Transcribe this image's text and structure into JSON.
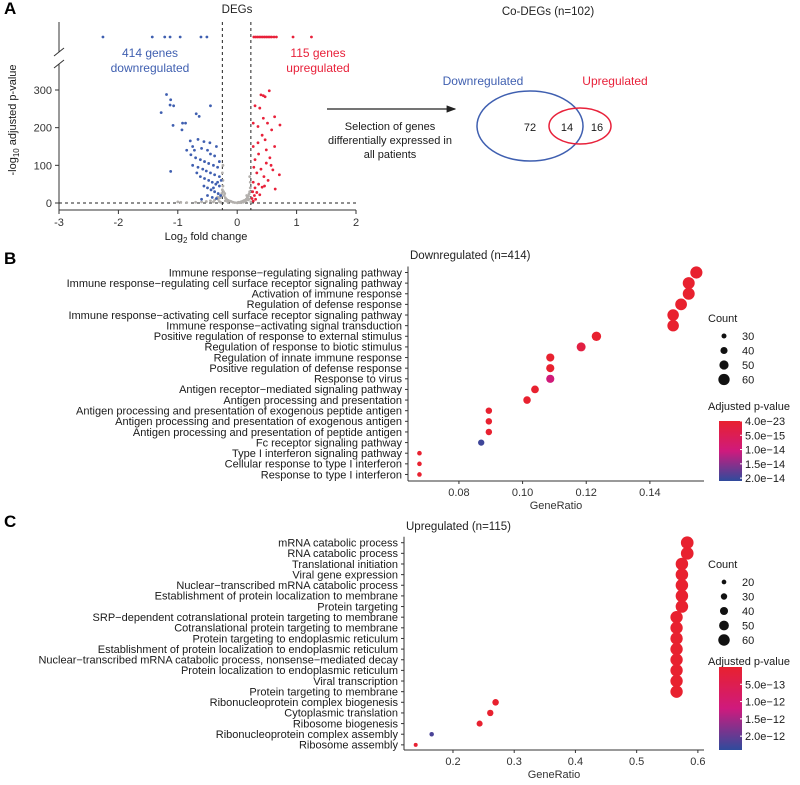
{
  "panels": {
    "a": "A",
    "b": "B",
    "c": "C"
  },
  "colors": {
    "down": "#3f5fb0",
    "up": "#e8213a",
    "ns": "#b3b0ad",
    "grad_high": "#e8212f",
    "grad_mid": "#cf1a7d",
    "grad_low": "#2f4b9c"
  },
  "chart_data": [
    {
      "type": "scatter",
      "title": "DEGs",
      "xlabel": {
        "main": "Log",
        "sub": "2",
        "rest": " fold change"
      },
      "ylabel": {
        "main": "-log",
        "sub": "10",
        "rest": " adjusted p-value"
      },
      "xlim": [
        -3,
        2
      ],
      "ylim": [
        0,
        300
      ],
      "xticks": [
        "-3",
        "-2",
        "-1",
        "0",
        "1",
        "2"
      ],
      "yticks": [
        "0",
        "100",
        "200",
        "300"
      ],
      "thresholds": {
        "fc_low": -0.25,
        "fc_high": 0.23,
        "p": 0
      },
      "annotations": {
        "down_line1": "414 genes",
        "down_line2": "downregulated",
        "up_line1": "115 genes",
        "up_line2": "upregulated"
      },
      "capped_down_x": [
        -2.26,
        -1.43,
        -1.22,
        -1.13,
        -0.96,
        -0.61,
        -0.51
      ],
      "capped_up_x": [
        0.28,
        0.31,
        0.34,
        0.37,
        0.4,
        0.43,
        0.46,
        0.49,
        0.52,
        0.55,
        0.58,
        0.62,
        0.66,
        0.94,
        1.25
      ],
      "down": [
        [
          -1.19,
          288
        ],
        [
          -1.12,
          274
        ],
        [
          -1.13,
          260
        ],
        [
          -1.07,
          258
        ],
        [
          -1.28,
          240
        ],
        [
          -1.08,
          206
        ],
        [
          -0.92,
          212
        ],
        [
          -0.87,
          212
        ],
        [
          -0.93,
          194
        ],
        [
          -0.69,
          237
        ],
        [
          -0.64,
          230
        ],
        [
          -0.45,
          258
        ],
        [
          -1.12,
          84
        ],
        [
          -0.79,
          165
        ],
        [
          -0.66,
          169
        ],
        [
          -0.56,
          163
        ],
        [
          -0.75,
          150
        ],
        [
          -0.72,
          140
        ],
        [
          -0.6,
          145
        ],
        [
          -0.5,
          140
        ],
        [
          -0.45,
          130
        ],
        [
          -0.38,
          125
        ],
        [
          -0.78,
          128
        ],
        [
          -0.7,
          120
        ],
        [
          -0.62,
          115
        ],
        [
          -0.55,
          110
        ],
        [
          -0.48,
          105
        ],
        [
          -0.4,
          100
        ],
        [
          -0.33,
          95
        ],
        [
          -0.75,
          100
        ],
        [
          -0.66,
          95
        ],
        [
          -0.58,
          90
        ],
        [
          -0.52,
          85
        ],
        [
          -0.45,
          80
        ],
        [
          -0.38,
          75
        ],
        [
          -0.3,
          70
        ],
        [
          -0.62,
          70
        ],
        [
          -0.55,
          65
        ],
        [
          -0.48,
          60
        ],
        [
          -0.42,
          55
        ],
        [
          -0.36,
          50
        ],
        [
          -0.3,
          45
        ],
        [
          -0.56,
          45
        ],
        [
          -0.5,
          40
        ],
        [
          -0.44,
          35
        ],
        [
          -0.38,
          30
        ],
        [
          -0.32,
          25
        ],
        [
          -0.28,
          20
        ],
        [
          -0.5,
          20
        ],
        [
          -0.42,
          15
        ],
        [
          -0.35,
          12
        ],
        [
          -0.6,
          10
        ],
        [
          -0.27,
          60
        ],
        [
          -0.3,
          110
        ],
        [
          -0.35,
          150
        ],
        [
          -0.85,
          140
        ],
        [
          -0.68,
          80
        ],
        [
          -0.46,
          160
        ],
        [
          -0.4,
          40
        ],
        [
          -0.33,
          55
        ]
      ],
      "up": [
        [
          0.4,
          287
        ],
        [
          0.54,
          298
        ],
        [
          0.47,
          282
        ],
        [
          0.44,
          285
        ],
        [
          0.3,
          258
        ],
        [
          0.38,
          252
        ],
        [
          0.63,
          229
        ],
        [
          0.72,
          207
        ],
        [
          0.44,
          225
        ],
        [
          0.27,
          212
        ],
        [
          0.51,
          212
        ],
        [
          0.35,
          203
        ],
        [
          0.58,
          194
        ],
        [
          0.47,
          168
        ],
        [
          0.27,
          150
        ],
        [
          0.63,
          150
        ],
        [
          0.49,
          141
        ],
        [
          0.3,
          115
        ],
        [
          0.49,
          106
        ],
        [
          0.71,
          75
        ],
        [
          0.64,
          37
        ],
        [
          0.42,
          180
        ],
        [
          0.36,
          130
        ],
        [
          0.55,
          120
        ],
        [
          0.28,
          95
        ],
        [
          0.4,
          90
        ],
        [
          0.6,
          88
        ],
        [
          0.33,
          80
        ],
        [
          0.45,
          70
        ],
        [
          0.52,
          60
        ],
        [
          0.27,
          55
        ],
        [
          0.36,
          50
        ],
        [
          0.3,
          40
        ],
        [
          0.42,
          42
        ],
        [
          0.26,
          30
        ],
        [
          0.33,
          28
        ],
        [
          0.29,
          20
        ],
        [
          0.38,
          22
        ],
        [
          0.25,
          12
        ],
        [
          0.31,
          10
        ],
        [
          0.27,
          5
        ],
        [
          0.57,
          100
        ],
        [
          0.46,
          45
        ],
        [
          0.35,
          160
        ]
      ],
      "ns": [
        [
          -1.0,
          3
        ],
        [
          -0.95,
          2
        ],
        [
          -0.85,
          1
        ],
        [
          -0.7,
          2
        ],
        [
          -0.6,
          3
        ],
        [
          -0.52,
          4
        ],
        [
          -0.45,
          6
        ],
        [
          -0.38,
          8
        ],
        [
          -0.32,
          10
        ],
        [
          -0.29,
          14
        ],
        [
          -0.27,
          18
        ],
        [
          -0.26,
          25
        ],
        [
          -0.25,
          35
        ],
        [
          -0.24,
          45
        ],
        [
          -0.23,
          30
        ],
        [
          -0.22,
          20
        ],
        [
          -0.2,
          14
        ],
        [
          -0.18,
          10
        ],
        [
          -0.15,
          7
        ],
        [
          -0.12,
          5
        ],
        [
          -0.1,
          4
        ],
        [
          -0.07,
          2
        ],
        [
          -0.04,
          1
        ],
        [
          0,
          0.5
        ],
        [
          0.03,
          1
        ],
        [
          0.06,
          3
        ],
        [
          0.09,
          5
        ],
        [
          0.12,
          7
        ],
        [
          0.15,
          10
        ],
        [
          0.17,
          14
        ],
        [
          0.19,
          18
        ],
        [
          0.2,
          24
        ],
        [
          0.21,
          30
        ],
        [
          0.22,
          40
        ],
        [
          0.22,
          55
        ],
        [
          0.21,
          70
        ],
        [
          -0.24,
          60
        ],
        [
          -0.25,
          80
        ],
        [
          -0.24,
          100
        ],
        [
          0.1,
          2
        ],
        [
          0.14,
          4
        ],
        [
          0.18,
          8
        ],
        [
          -0.2,
          6
        ],
        [
          -0.16,
          3
        ],
        [
          -0.3,
          4
        ],
        [
          -0.4,
          3
        ],
        [
          0.05,
          1
        ],
        [
          -0.33,
          16
        ],
        [
          0.2,
          10
        ],
        [
          0.16,
          20
        ],
        [
          -0.21,
          25
        ],
        [
          -0.28,
          2
        ],
        [
          0.23,
          3
        ],
        [
          0.02,
          2
        ]
      ]
    },
    {
      "type": "venn",
      "title": "Co-DEGs (n=102)",
      "arrow_text": [
        "Selection of genes",
        "differentially expressed in",
        "all patients"
      ],
      "sets": [
        {
          "name": "Downregulated",
          "only": 72
        },
        {
          "name": "Upregulated",
          "only": 16
        }
      ],
      "overlap": 14
    },
    {
      "type": "scatter",
      "title": "Downregulated (n=414)",
      "xlabel": "GeneRatio",
      "xlim": [
        0.064,
        0.157
      ],
      "xticks": [
        0.08,
        0.1,
        0.12,
        0.14
      ],
      "xtick_labels": [
        "0.08",
        "0.10",
        "0.12",
        "0.14"
      ],
      "terms": [
        "Immune response−regulating signaling pathway",
        "Immune response−regulating cell surface receptor signaling pathway",
        "Activation of immune response",
        "Regulation of defense response",
        "Immune response−activating cell surface receptor signaling pathway",
        "Immune response−activating signal transduction",
        "Positive regulation of response to external stimulus",
        "Regulation of response to biotic stimulus",
        "Regulation of innate immune response",
        "Positive regulation of defense response",
        "Response to virus",
        "Antigen receptor−mediated signaling pathway",
        "Antigen processing and presentation",
        "Antigen processing and presentation of exogenous peptide antigen",
        "Antigen processing and presentation of exogenous antigen",
        "Antigen processing and presentation of peptide antigen",
        "Fc receptor signaling pathway",
        "Type I interferon signaling pathway",
        "Cellular response to type I interferon",
        "Response to type I interferon"
      ],
      "gene_ratio": [
        0.1546,
        0.1522,
        0.1522,
        0.1498,
        0.1473,
        0.1473,
        0.1232,
        0.1184,
        0.1087,
        0.1087,
        0.1087,
        0.1039,
        0.1014,
        0.0894,
        0.0894,
        0.0894,
        0.087,
        0.0676,
        0.0676,
        0.0676
      ],
      "count": [
        64,
        63,
        63,
        62,
        61,
        61,
        51,
        49,
        45,
        45,
        45,
        43,
        42,
        37,
        37,
        37,
        36,
        28,
        28,
        28
      ],
      "p_adjust": [
        4e-23,
        1e-22,
        1e-22,
        5e-22,
        1e-21,
        1e-21,
        1e-19,
        2.5e-15,
        1e-18,
        1e-18,
        1e-14,
        1e-17,
        1e-17,
        1e-16,
        1e-16,
        1e-16,
        2e-14,
        1e-16,
        1e-16,
        1e-16
      ],
      "size_legend": {
        "title": "Count",
        "values": [
          30,
          40,
          50,
          60
        ]
      },
      "color_legend": {
        "title": "Adjusted p-value",
        "range": [
          4e-23,
          2.1e-14
        ],
        "ticks": [
          4e-23,
          5e-15,
          1e-14,
          1.5e-14,
          2e-14
        ],
        "tick_labels": [
          "4.0e−23",
          "5.0e−15",
          "1.0e−14",
          "1.5e−14",
          "2.0e−14"
        ]
      }
    },
    {
      "type": "scatter",
      "title": "Upregulated (n=115)",
      "xlabel": "GeneRatio",
      "xlim": [
        0.12,
        0.61
      ],
      "xticks": [
        0.2,
        0.3,
        0.4,
        0.5,
        0.6
      ],
      "xtick_labels": [
        "0.2",
        "0.3",
        "0.4",
        "0.5",
        "0.6"
      ],
      "terms": [
        "mRNA catabolic process",
        "RNA catabolic process",
        "Translational initiation",
        "Viral gene expression",
        "Nuclear−transcribed mRNA catabolic process",
        "Establishment of protein localization to membrane",
        "Protein targeting",
        "SRP−dependent cotranslational protein targeting to membrane",
        "Cotranslational protein targeting to membrane",
        "Protein targeting to endoplasmic reticulum",
        "Establishment of protein localization to endoplasmic reticulum",
        "Nuclear−transcribed mRNA catabolic process, nonsense−mediated decay",
        "Protein localization to endoplasmic reticulum",
        "Viral transcription",
        "Protein targeting to membrane",
        "Ribonucleoprotein complex biogenesis",
        "Cytoplasmic translation",
        "Ribosome biogenesis",
        "Ribonucleoprotein complex assembly",
        "Ribosome assembly"
      ],
      "gene_ratio": [
        0.5826,
        0.5826,
        0.5739,
        0.5739,
        0.5739,
        0.5739,
        0.5739,
        0.5652,
        0.5652,
        0.5652,
        0.5652,
        0.5652,
        0.5652,
        0.5652,
        0.5652,
        0.2696,
        0.2609,
        0.2435,
        0.1652,
        0.1391
      ],
      "count": [
        67,
        67,
        66,
        66,
        66,
        66,
        66,
        65,
        65,
        65,
        65,
        65,
        65,
        65,
        65,
        31,
        30,
        28,
        19,
        16
      ],
      "p_adjust": [
        1e-40,
        1e-40,
        1e-40,
        1e-40,
        1e-40,
        1e-40,
        1e-40,
        1e-40,
        1e-40,
        1e-40,
        1e-40,
        1e-40,
        1e-40,
        1e-40,
        1e-40,
        1e-15,
        1e-15,
        1e-14,
        2.2e-12,
        5e-14
      ],
      "size_legend": {
        "title": "Count",
        "values": [
          20,
          30,
          40,
          50,
          60
        ]
      },
      "color_legend": {
        "title": "Adjusted p-value",
        "range": [
          0,
          2.4e-12
        ],
        "ticks": [
          5e-13,
          1e-12,
          1.5e-12,
          2e-12
        ],
        "tick_labels": [
          "5.0e−13",
          "1.0e−12",
          "1.5e−12",
          "2.0e−12"
        ]
      }
    }
  ]
}
